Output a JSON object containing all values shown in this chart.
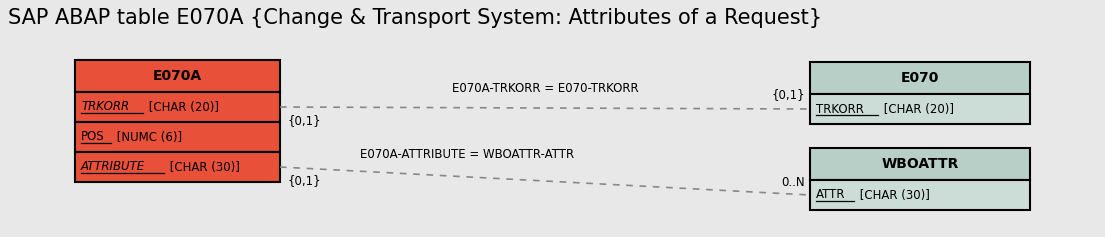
{
  "title": "SAP ABAP table E070A {Change & Transport System: Attributes of a Request}",
  "title_fontsize": 15,
  "bg_color": "#e8e8e8",
  "e070a": {
    "header": "E070A",
    "header_bg": "#e8503a",
    "row_bg": "#e8503a",
    "border_color": "#000000",
    "rows": [
      "TRKORR [CHAR (20)]",
      "POS [NUMC (6)]",
      "ATTRIBUTE [CHAR (30)]"
    ],
    "italic_rows": [
      0,
      2
    ],
    "key_rows": [
      0,
      1,
      2
    ]
  },
  "e070": {
    "header": "E070",
    "header_bg": "#b8cfc8",
    "row_bg": "#ccddd8",
    "border_color": "#000000",
    "rows": [
      "TRKORR [CHAR (20)]"
    ],
    "key_rows": [
      0
    ]
  },
  "wboattr": {
    "header": "WBOATTR",
    "header_bg": "#b8cfc8",
    "row_bg": "#ccddd8",
    "border_color": "#000000",
    "rows": [
      "ATTR [CHAR (30)]"
    ],
    "key_rows": [
      0
    ]
  },
  "rel1_label": "E070A-TRKORR = E070-TRKORR",
  "rel1_from_card": "{0,1}",
  "rel1_to_card": "{0,1}",
  "rel2_label": "E070A-ATTRIBUTE = WBOATTR-ATTR",
  "rel2_from_card": "{0,1}",
  "rel2_to_card": "0..N",
  "line_color": "#888888",
  "text_color": "#000000"
}
